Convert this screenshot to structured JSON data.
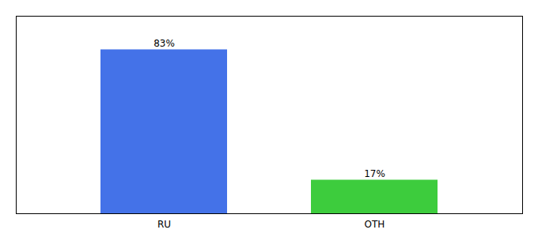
{
  "chart_data": {
    "type": "bar",
    "categories": [
      "RU",
      "OTH"
    ],
    "values": [
      83,
      17
    ],
    "value_labels": [
      "83%",
      "17%"
    ],
    "colors": [
      "#4472e8",
      "#3dcc3d"
    ],
    "ylim": [
      0,
      100
    ],
    "data_labels": true,
    "tick_labels": "x"
  }
}
